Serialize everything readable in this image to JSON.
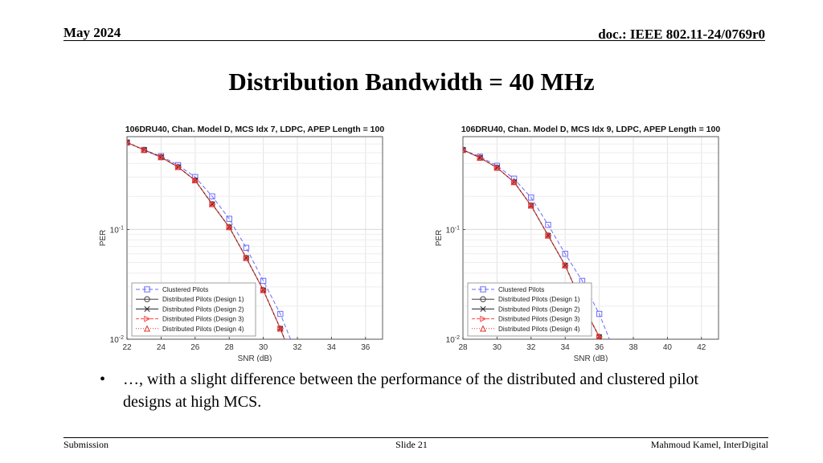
{
  "header": {
    "date": "May 2024",
    "doc": "doc.: IEEE 802.11-24/0769r0"
  },
  "slide_title": "Distribution Bandwidth = 40 MHz",
  "bullet": {
    "mark": "•",
    "text": "…, with a slight difference between the performance of the distributed and clustered pilot designs at high MCS."
  },
  "footer": {
    "left": "Submission",
    "center": "Slide 21",
    "right": "Mahmoud Kamel, InterDigital"
  },
  "chart_data": [
    {
      "type": "line",
      "title": "106DRU40, Chan. Model D, MCS Idx 7, LDPC, APEP Length = 100",
      "xlabel": "SNR (dB)",
      "ylabel": "PER",
      "xlim": [
        22,
        37
      ],
      "xticks": [
        22,
        24,
        26,
        28,
        30,
        32,
        34,
        36
      ],
      "ylim": [
        0.01,
        0.7
      ],
      "yscale": "log",
      "ytick_labels": [
        "10^-2",
        "10^-1"
      ],
      "grid": true,
      "legend": "bottom-left",
      "series": [
        {
          "name": "Clustered Pilots",
          "color": "#6b6bff",
          "dash": "5,3",
          "marker": "square",
          "x": [
            21,
            22,
            23,
            24,
            25,
            26,
            27,
            28,
            29,
            30,
            31,
            32
          ],
          "y": [
            0.8,
            0.62,
            0.53,
            0.465,
            0.385,
            0.3,
            0.2,
            0.125,
            0.068,
            0.034,
            0.017,
            0.007
          ]
        },
        {
          "name": "Distributed Pilots (Design 1)",
          "color": "#444444",
          "dash": "",
          "marker": "circle",
          "x": [
            21,
            22,
            23,
            24,
            25,
            26,
            27,
            28,
            29,
            30,
            31,
            32
          ],
          "y": [
            0.8,
            0.62,
            0.53,
            0.455,
            0.37,
            0.28,
            0.17,
            0.105,
            0.055,
            0.028,
            0.0125,
            0.005
          ]
        },
        {
          "name": "Distributed Pilots (Design 2)",
          "color": "#222222",
          "dash": "",
          "marker": "x",
          "x": [
            21,
            22,
            23,
            24,
            25,
            26,
            27,
            28,
            29,
            30,
            31,
            32
          ],
          "y": [
            0.8,
            0.62,
            0.53,
            0.455,
            0.37,
            0.28,
            0.17,
            0.105,
            0.055,
            0.028,
            0.0125,
            0.005
          ]
        },
        {
          "name": "Distributed Pilots (Design 3)",
          "color": "#ff4444",
          "dash": "4,2",
          "marker": "triangle-right",
          "x": [
            21,
            22,
            23,
            24,
            25,
            26,
            27,
            28,
            29,
            30,
            31,
            32
          ],
          "y": [
            0.8,
            0.62,
            0.53,
            0.455,
            0.37,
            0.28,
            0.17,
            0.105,
            0.055,
            0.028,
            0.0125,
            0.005
          ]
        },
        {
          "name": "Distributed Pilots (Design 4)",
          "color": "#e03030",
          "dash": "1,2",
          "marker": "triangle-up",
          "x": [
            21,
            22,
            23,
            24,
            25,
            26,
            27,
            28,
            29,
            30,
            31,
            32
          ],
          "y": [
            0.8,
            0.62,
            0.53,
            0.455,
            0.37,
            0.28,
            0.17,
            0.105,
            0.055,
            0.028,
            0.0125,
            0.005
          ]
        }
      ]
    },
    {
      "type": "line",
      "title": "106DRU40, Chan. Model D, MCS Idx 9, LDPC, APEP Length = 100",
      "xlabel": "SNR (dB)",
      "ylabel": "PER",
      "xlim": [
        28,
        43
      ],
      "xticks": [
        28,
        30,
        32,
        34,
        36,
        38,
        40,
        42
      ],
      "ylim": [
        0.01,
        0.7
      ],
      "yscale": "log",
      "ytick_labels": [
        "10^-2",
        "10^-1"
      ],
      "grid": true,
      "legend": "bottom-left",
      "series": [
        {
          "name": "Clustered Pilots",
          "color": "#6b6bff",
          "dash": "5,3",
          "marker": "square",
          "x": [
            28,
            29,
            30,
            31,
            32,
            33,
            34,
            35,
            36,
            37
          ],
          "y": [
            0.53,
            0.46,
            0.38,
            0.29,
            0.195,
            0.11,
            0.06,
            0.034,
            0.017,
            0.007
          ]
        },
        {
          "name": "Distributed Pilots (Design 1)",
          "color": "#444444",
          "dash": "",
          "marker": "circle",
          "x": [
            28,
            29,
            30,
            31,
            32,
            33,
            34,
            35,
            36,
            37
          ],
          "y": [
            0.53,
            0.45,
            0.365,
            0.27,
            0.165,
            0.088,
            0.047,
            0.021,
            0.0105,
            0.004
          ]
        },
        {
          "name": "Distributed Pilots (Design 2)",
          "color": "#222222",
          "dash": "",
          "marker": "x",
          "x": [
            28,
            29,
            30,
            31,
            32,
            33,
            34,
            35,
            36,
            37
          ],
          "y": [
            0.53,
            0.45,
            0.365,
            0.27,
            0.165,
            0.088,
            0.047,
            0.021,
            0.0105,
            0.004
          ]
        },
        {
          "name": "Distributed Pilots (Design 3)",
          "color": "#ff4444",
          "dash": "4,2",
          "marker": "triangle-right",
          "x": [
            28,
            29,
            30,
            31,
            32,
            33,
            34,
            35,
            36,
            37
          ],
          "y": [
            0.53,
            0.45,
            0.365,
            0.27,
            0.165,
            0.088,
            0.047,
            0.021,
            0.0105,
            0.004
          ]
        },
        {
          "name": "Distributed Pilots (Design 4)",
          "color": "#e03030",
          "dash": "1,2",
          "marker": "triangle-up",
          "x": [
            28,
            29,
            30,
            31,
            32,
            33,
            34,
            35,
            36,
            37
          ],
          "y": [
            0.53,
            0.45,
            0.365,
            0.27,
            0.165,
            0.088,
            0.047,
            0.021,
            0.0105,
            0.004
          ]
        }
      ]
    }
  ]
}
